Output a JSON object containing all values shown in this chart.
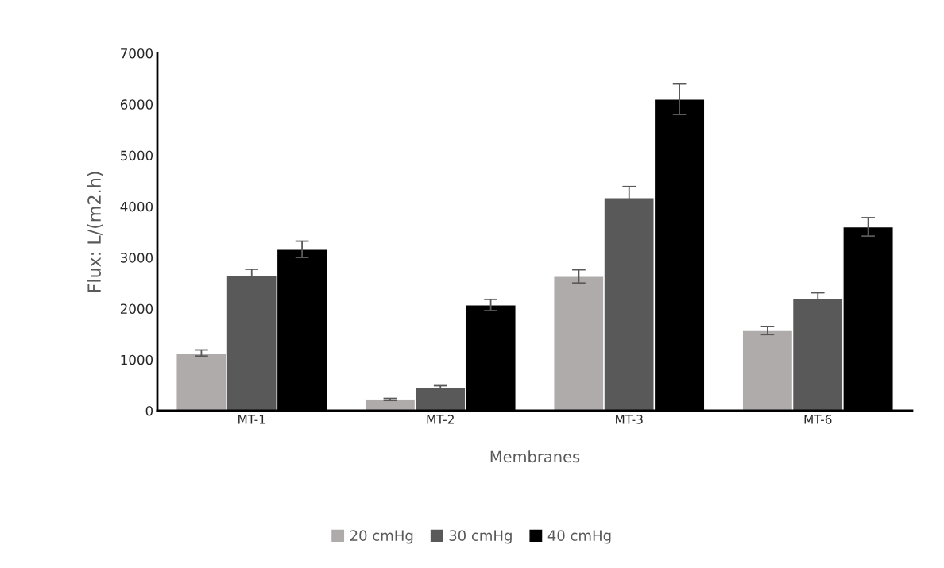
{
  "chart_data": {
    "type": "bar",
    "xlabel": "Membranes",
    "ylabel": "Flux: L/(m2.h)",
    "categories": [
      "MT-1",
      "MT-2",
      "MT-3",
      "MT-6"
    ],
    "series": [
      {
        "name": "20 cmHg",
        "color": "#afabab",
        "values": [
          1130,
          220,
          2630,
          1570
        ],
        "errors": [
          60,
          20,
          130,
          80
        ]
      },
      {
        "name": "30 cmHg",
        "color": "#595959",
        "values": [
          2640,
          460,
          4170,
          2190
        ],
        "errors": [
          130,
          30,
          220,
          120
        ]
      },
      {
        "name": "40 cmHg",
        "color": "#000000",
        "values": [
          3160,
          2070,
          6100,
          3600
        ],
        "errors": [
          160,
          110,
          300,
          180
        ]
      }
    ],
    "ylim": [
      0,
      7000
    ],
    "yticks": [
      0,
      1000,
      2000,
      3000,
      4000,
      5000,
      6000,
      7000
    ],
    "grid": false,
    "legend": "bottom"
  }
}
